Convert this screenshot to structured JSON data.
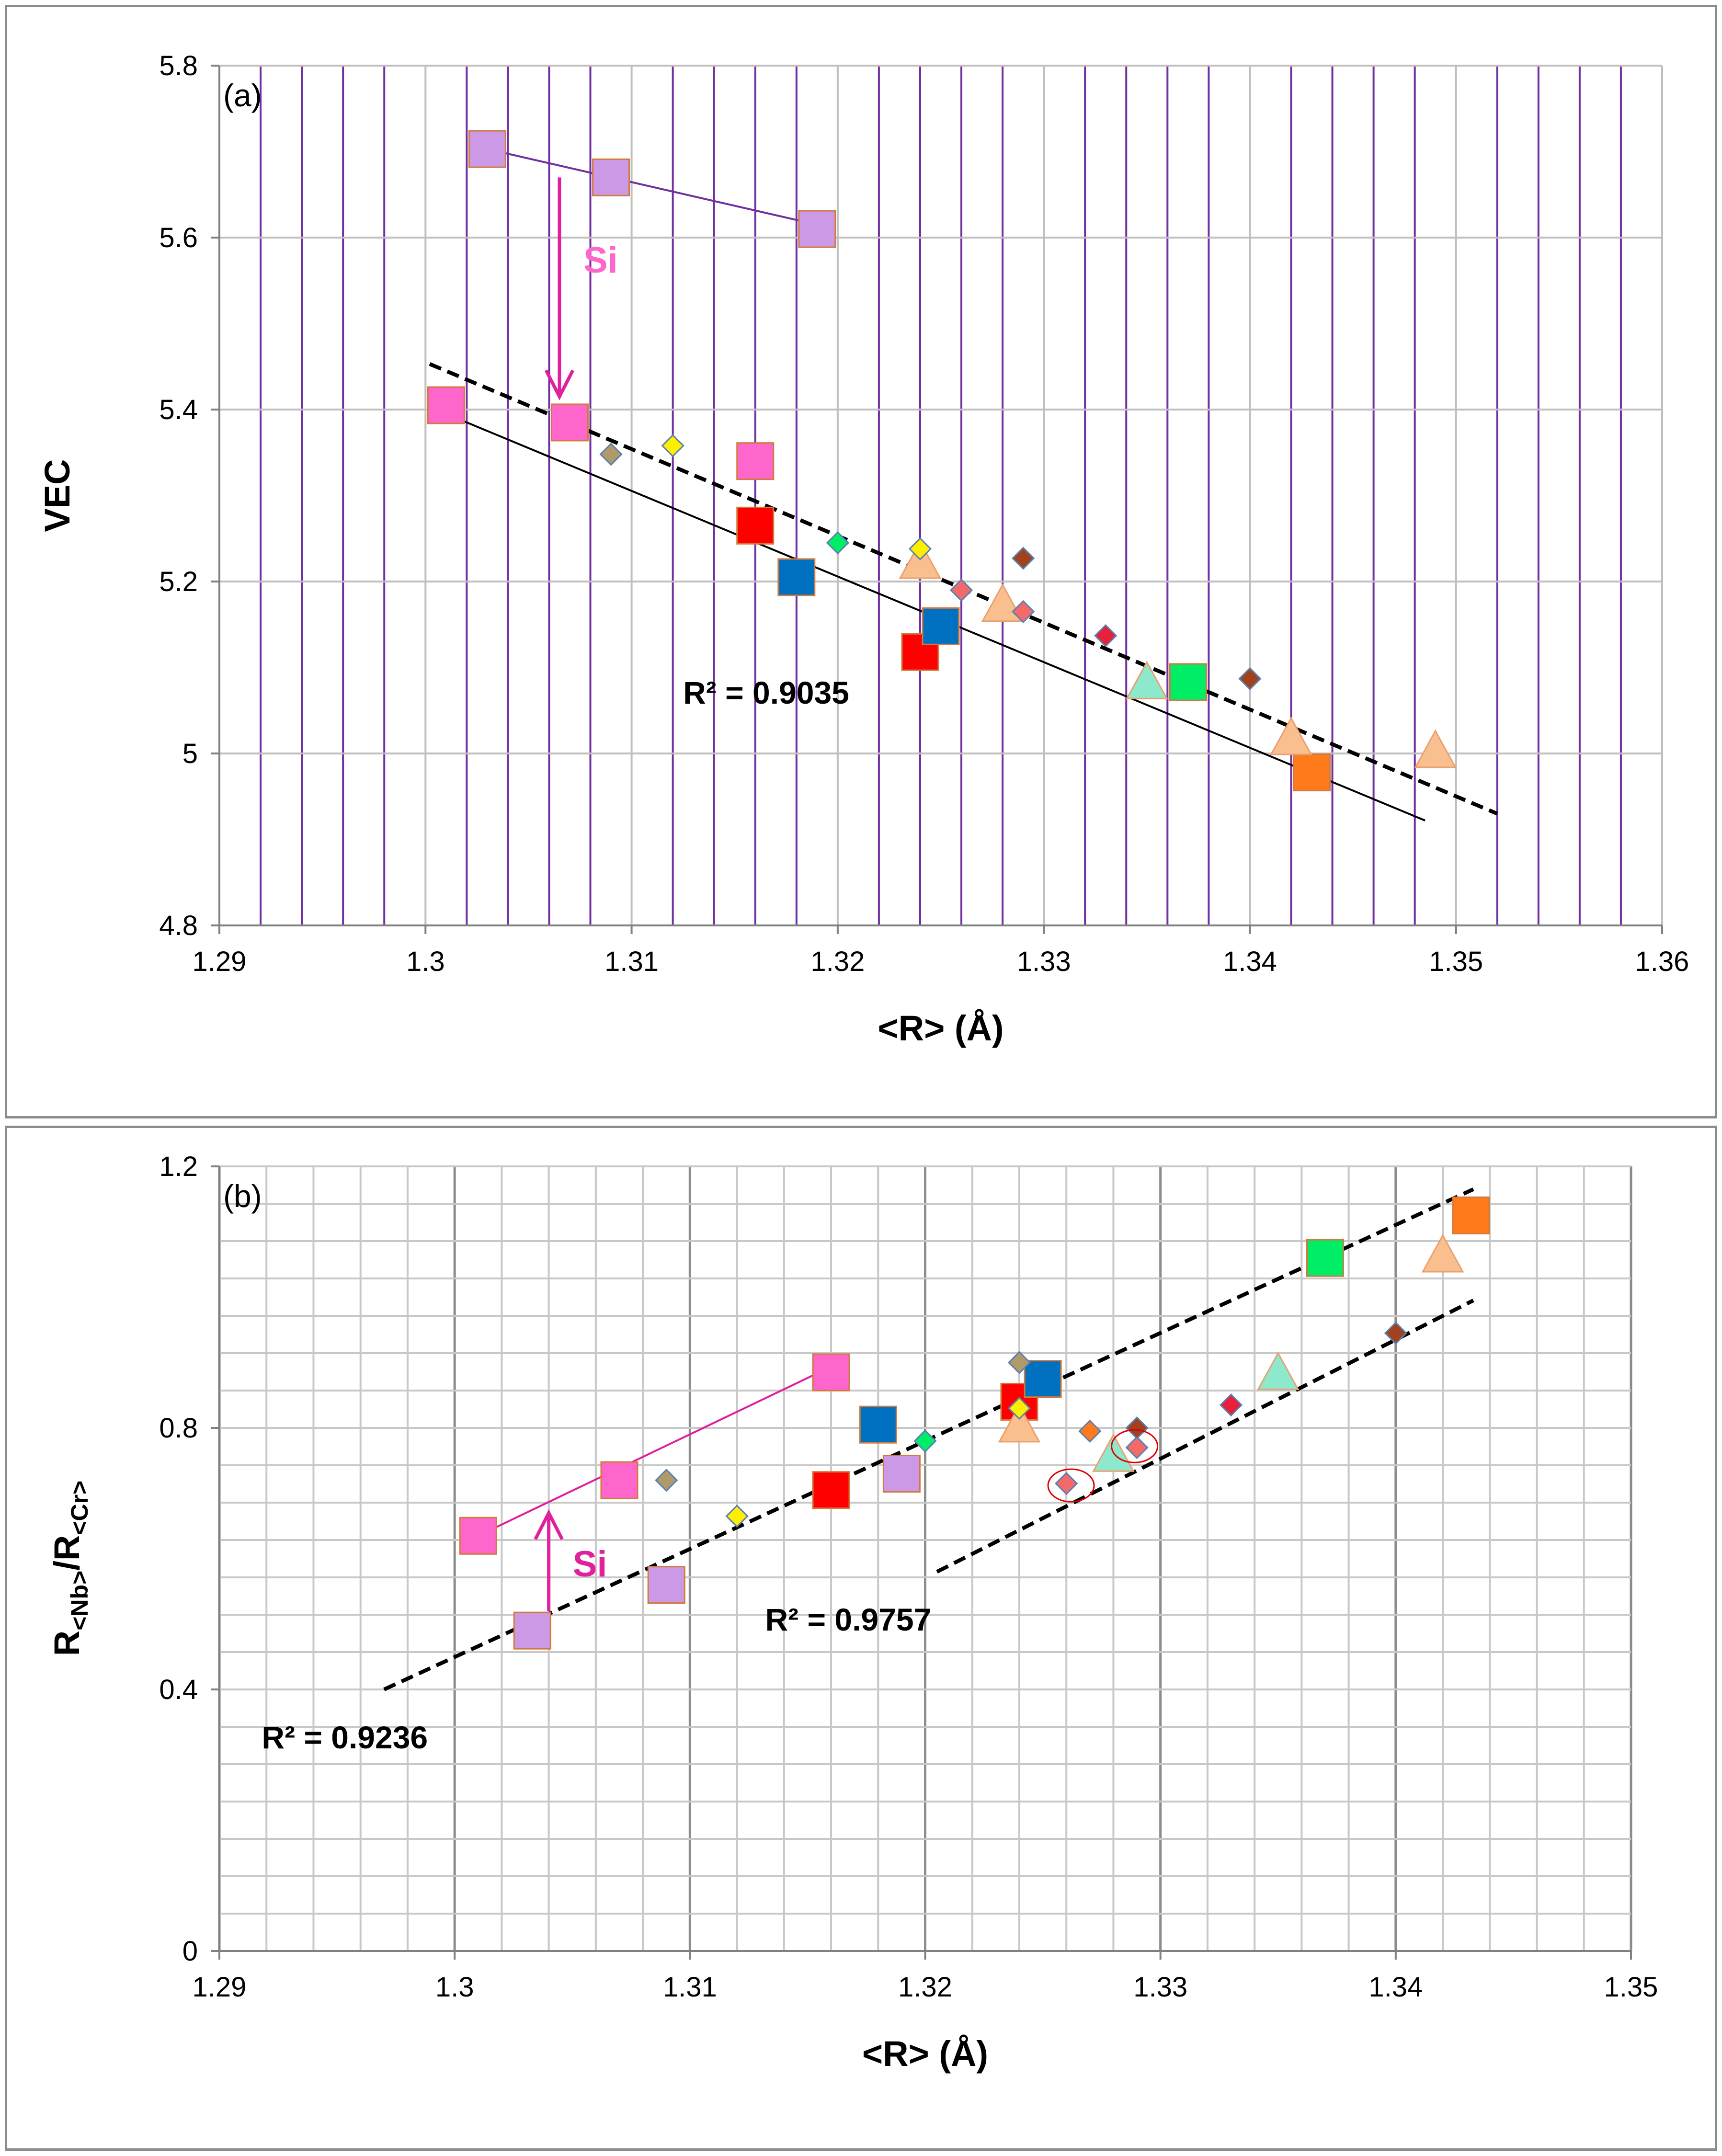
{
  "colors": {
    "purple_grid": "#7030a0",
    "gray_grid": "#bfbfbf",
    "lilac": "#cc99e6",
    "pink": "#ff66cc",
    "red": "#ff0000",
    "blue": "#0070c0",
    "green": "#00ee66",
    "orange": "#ff7a1a",
    "peach": "#fabf8f",
    "mint": "#8ee8cc",
    "yellow": "#ffee00",
    "tan": "#b09a6a",
    "brown": "#a0421e",
    "navyred": "#e8203a",
    "coral": "#f46a6a",
    "magenta": "#e0209c"
  },
  "chart_data": [
    {
      "type": "scatter",
      "panel_label": "(a)",
      "xlabel": "<R> (Å)",
      "ylabel": "VEC",
      "xlim": [
        1.29,
        1.36
      ],
      "ylim": [
        4.8,
        5.8
      ],
      "x_ticks": [
        "1.29",
        "1.3",
        "1.31",
        "1.32",
        "1.33",
        "1.34",
        "1.35",
        "1.36"
      ],
      "y_ticks": [
        "4.8",
        "5",
        "5.2",
        "5.4",
        "5.6",
        "5.8"
      ],
      "series": [
        {
          "name": "lilac squares",
          "marker": "square",
          "color": "lilac",
          "size": "large",
          "points": [
            [
              1.303,
              5.703
            ],
            [
              1.309,
              5.67
            ],
            [
              1.319,
              5.61
            ]
          ]
        },
        {
          "name": "pink squares",
          "marker": "square",
          "color": "pink",
          "size": "large",
          "points": [
            [
              1.301,
              5.405
            ],
            [
              1.307,
              5.385
            ],
            [
              1.316,
              5.34
            ]
          ]
        },
        {
          "name": "red squares",
          "marker": "square",
          "color": "red",
          "size": "large",
          "points": [
            [
              1.316,
              5.265
            ],
            [
              1.324,
              5.118
            ]
          ]
        },
        {
          "name": "blue squares",
          "marker": "square",
          "color": "blue",
          "size": "large",
          "points": [
            [
              1.318,
              5.205
            ],
            [
              1.325,
              5.148
            ]
          ]
        },
        {
          "name": "green square",
          "marker": "square",
          "color": "green",
          "size": "large",
          "points": [
            [
              1.337,
              5.083
            ]
          ]
        },
        {
          "name": "orange square",
          "marker": "square",
          "color": "orange",
          "size": "large",
          "points": [
            [
              1.343,
              4.978
            ]
          ]
        },
        {
          "name": "peach triangles",
          "marker": "triangle",
          "color": "peach",
          "size": "large",
          "points": [
            [
              1.324,
              5.22
            ],
            [
              1.328,
              5.17
            ],
            [
              1.342,
              5.015
            ],
            [
              1.349,
              5.0
            ]
          ]
        },
        {
          "name": "mint triangle",
          "marker": "triangle",
          "color": "mint",
          "size": "large",
          "points": [
            [
              1.335,
              5.08
            ]
          ]
        },
        {
          "name": "tan diamond",
          "marker": "diamond",
          "color": "tan",
          "size": "small",
          "points": [
            [
              1.309,
              5.348
            ]
          ]
        },
        {
          "name": "yellow diamonds",
          "marker": "diamond",
          "color": "yellow",
          "size": "small",
          "points": [
            [
              1.312,
              5.358
            ],
            [
              1.324,
              5.238
            ]
          ]
        },
        {
          "name": "green diamond",
          "marker": "diamond",
          "color": "green",
          "size": "small",
          "points": [
            [
              1.32,
              5.245
            ]
          ]
        },
        {
          "name": "coral diamonds",
          "marker": "diamond",
          "color": "coral",
          "size": "small",
          "points": [
            [
              1.326,
              5.19
            ],
            [
              1.329,
              5.165
            ]
          ]
        },
        {
          "name": "brown diamonds",
          "marker": "diamond",
          "color": "brown",
          "size": "small",
          "points": [
            [
              1.329,
              5.227
            ],
            [
              1.34,
              5.087
            ]
          ]
        },
        {
          "name": "red diamond",
          "marker": "diamond",
          "color": "navyred",
          "size": "small",
          "points": [
            [
              1.333,
              5.137
            ]
          ]
        }
      ],
      "lines": [
        {
          "name": "lilac trend",
          "style": "solid",
          "color": "#7030a0",
          "from": [
            1.303,
            5.703
          ],
          "to": [
            1.319,
            5.615
          ]
        },
        {
          "name": "dashed fit",
          "style": "dashed",
          "color": "#000000",
          "from": [
            1.3002,
            5.453
          ],
          "to": [
            1.352,
            4.93
          ]
        },
        {
          "name": "solid fit",
          "style": "solid",
          "color": "#000000",
          "from": [
            1.3005,
            5.4
          ],
          "to": [
            1.3485,
            4.922
          ]
        }
      ],
      "annotations": [
        {
          "kind": "text",
          "text": "R² = 0.9035",
          "x": 1.3125,
          "y": 5.058
        },
        {
          "kind": "arrow",
          "label": "Si",
          "x": 1.3065,
          "y_from": 5.67,
          "y_to": 5.415
        }
      ]
    },
    {
      "type": "scatter",
      "panel_label": "(b)",
      "xlabel": "<R> (Å)",
      "ylabel": "R<Nb>/R<Cr>",
      "xlim": [
        1.29,
        1.35
      ],
      "ylim": [
        0,
        1.2
      ],
      "x_ticks": [
        "1.29",
        "1.3",
        "1.31",
        "1.32",
        "1.33",
        "1.34",
        "1.35"
      ],
      "y_ticks": [
        "0",
        "0.4",
        "0.8",
        "1.2"
      ],
      "series": [
        {
          "name": "pink squares",
          "marker": "square",
          "color": "pink",
          "size": "large",
          "points": [
            [
              1.301,
              0.635
            ],
            [
              1.307,
              0.72
            ],
            [
              1.316,
              0.885
            ]
          ]
        },
        {
          "name": "lilac squares",
          "marker": "square",
          "color": "lilac",
          "size": "large",
          "points": [
            [
              1.3033,
              0.49
            ],
            [
              1.309,
              0.56
            ],
            [
              1.319,
              0.73
            ]
          ]
        },
        {
          "name": "red squares",
          "marker": "square",
          "color": "red",
          "size": "large",
          "points": [
            [
              1.316,
              0.705
            ],
            [
              1.324,
              0.84
            ]
          ]
        },
        {
          "name": "blue squares",
          "marker": "square",
          "color": "blue",
          "size": "large",
          "points": [
            [
              1.318,
              0.805
            ],
            [
              1.325,
              0.875
            ]
          ]
        },
        {
          "name": "green square",
          "marker": "square",
          "color": "green",
          "size": "large",
          "points": [
            [
              1.337,
              1.06
            ]
          ]
        },
        {
          "name": "orange square",
          "marker": "square",
          "color": "orange",
          "size": "large",
          "points": [
            [
              1.3432,
              1.125
            ]
          ]
        },
        {
          "name": "peach triangles",
          "marker": "triangle",
          "color": "peach",
          "size": "large",
          "points": [
            [
              1.324,
              0.8
            ],
            [
              1.342,
              1.06
            ]
          ]
        },
        {
          "name": "mint triangles",
          "marker": "triangle",
          "color": "mint",
          "size": "large",
          "points": [
            [
              1.328,
              0.755
            ],
            [
              1.335,
              0.88
            ]
          ]
        },
        {
          "name": "tan diamonds",
          "marker": "diamond",
          "color": "tan",
          "size": "small",
          "points": [
            [
              1.309,
              0.72
            ],
            [
              1.324,
              0.9
            ]
          ]
        },
        {
          "name": "yellow diamonds",
          "marker": "diamond",
          "color": "yellow",
          "size": "small",
          "points": [
            [
              1.312,
              0.665
            ],
            [
              1.324,
              0.83
            ]
          ]
        },
        {
          "name": "green diamond",
          "marker": "diamond",
          "color": "green",
          "size": "small",
          "points": [
            [
              1.32,
              0.78
            ]
          ]
        },
        {
          "name": "orange diamond",
          "marker": "diamond",
          "color": "orange",
          "size": "small",
          "points": [
            [
              1.327,
              0.795
            ]
          ]
        },
        {
          "name": "coral diamonds",
          "marker": "diamond",
          "color": "coral",
          "size": "small",
          "points": [
            [
              1.326,
              0.715
            ],
            [
              1.329,
              0.77
            ]
          ]
        },
        {
          "name": "brown diamonds",
          "marker": "diamond",
          "color": "brown",
          "size": "small",
          "points": [
            [
              1.329,
              0.8
            ],
            [
              1.34,
              0.945
            ]
          ]
        },
        {
          "name": "red diamond",
          "marker": "diamond",
          "color": "navyred",
          "size": "small",
          "points": [
            [
              1.333,
              0.835
            ]
          ]
        }
      ],
      "lines": [
        {
          "name": "pink trend",
          "style": "solid",
          "color": "#e0209c",
          "from": [
            1.301,
            0.635
          ],
          "to": [
            1.3155,
            0.885
          ]
        },
        {
          "name": "lower dashed fit",
          "style": "dashed",
          "color": "#000000",
          "from": [
            1.297,
            0.4
          ],
          "to": [
            1.3433,
            1.165
          ]
        },
        {
          "name": "right dashed fit",
          "style": "dashed",
          "color": "#000000",
          "from": [
            1.3205,
            0.58
          ],
          "to": [
            1.3433,
            0.995
          ]
        }
      ],
      "annotations": [
        {
          "kind": "text",
          "text": "R² = 0.9757",
          "x": 1.3132,
          "y": 0.49
        },
        {
          "kind": "text",
          "text": "R² = 0.9236",
          "x": 1.2918,
          "y": 0.31
        },
        {
          "kind": "arrow",
          "label": "Si",
          "x": 1.304,
          "y_from": 0.52,
          "y_to": 0.67
        },
        {
          "kind": "circle",
          "x": 1.3262,
          "y": 0.712
        },
        {
          "kind": "circle",
          "x": 1.3289,
          "y": 0.772
        }
      ]
    }
  ]
}
